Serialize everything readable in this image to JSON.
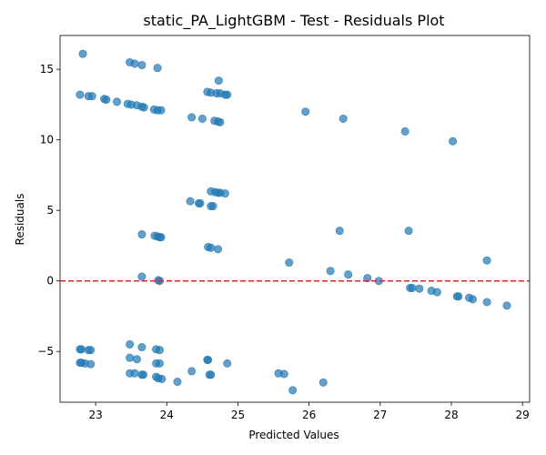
{
  "chart_data": {
    "type": "scatter",
    "title": "static_PA_LightGBM - Test - Residuals Plot",
    "xlabel": "Predicted Values",
    "ylabel": "Residuals",
    "xlim": [
      22.5,
      29.1
    ],
    "ylim": [
      -8.6,
      17.4
    ],
    "xticks": [
      23,
      24,
      25,
      26,
      27,
      28,
      29
    ],
    "yticks": [
      -5,
      0,
      5,
      10,
      15
    ],
    "grid": false,
    "legend": "none",
    "reference_line": {
      "y": 0,
      "style": "dashed",
      "color": "#d62728"
    },
    "point_color": "#1f77b4",
    "point_alpha": 0.7,
    "series": [
      {
        "points": [
          [
            22.82,
            16.1
          ],
          [
            23.48,
            15.5
          ],
          [
            23.55,
            15.4
          ],
          [
            23.65,
            15.3
          ],
          [
            23.87,
            15.1
          ],
          [
            24.73,
            14.2
          ],
          [
            22.78,
            13.2
          ],
          [
            22.9,
            13.1
          ],
          [
            22.95,
            13.1
          ],
          [
            23.12,
            12.9
          ],
          [
            23.15,
            12.85
          ],
          [
            23.3,
            12.7
          ],
          [
            23.45,
            12.55
          ],
          [
            23.5,
            12.5
          ],
          [
            23.58,
            12.45
          ],
          [
            23.65,
            12.35
          ],
          [
            23.68,
            12.3
          ],
          [
            23.82,
            12.15
          ],
          [
            23.87,
            12.1
          ],
          [
            23.92,
            12.1
          ],
          [
            24.57,
            13.4
          ],
          [
            24.62,
            13.35
          ],
          [
            24.7,
            13.3
          ],
          [
            24.75,
            13.3
          ],
          [
            24.82,
            13.2
          ],
          [
            24.85,
            13.2
          ],
          [
            24.35,
            11.6
          ],
          [
            24.5,
            11.5
          ],
          [
            24.67,
            11.35
          ],
          [
            24.72,
            11.3
          ],
          [
            24.75,
            11.25
          ],
          [
            25.95,
            12.0
          ],
          [
            26.48,
            11.5
          ],
          [
            27.35,
            10.6
          ],
          [
            28.02,
            9.9
          ],
          [
            24.62,
            6.35
          ],
          [
            24.68,
            6.3
          ],
          [
            24.72,
            6.25
          ],
          [
            24.75,
            6.25
          ],
          [
            24.82,
            6.2
          ],
          [
            24.33,
            5.65
          ],
          [
            24.45,
            5.5
          ],
          [
            24.47,
            5.5
          ],
          [
            24.62,
            5.3
          ],
          [
            24.65,
            5.3
          ],
          [
            23.65,
            3.3
          ],
          [
            23.83,
            3.2
          ],
          [
            23.87,
            3.15
          ],
          [
            23.9,
            3.1
          ],
          [
            23.92,
            3.1
          ],
          [
            24.58,
            2.4
          ],
          [
            24.62,
            2.35
          ],
          [
            24.72,
            2.25
          ],
          [
            26.43,
            3.55
          ],
          [
            27.4,
            3.55
          ],
          [
            25.72,
            1.3
          ],
          [
            28.5,
            1.45
          ],
          [
            23.65,
            0.3
          ],
          [
            23.88,
            0.05
          ],
          [
            23.9,
            0.0
          ],
          [
            26.3,
            0.7
          ],
          [
            26.55,
            0.45
          ],
          [
            26.82,
            0.2
          ],
          [
            26.98,
            0.0
          ],
          [
            27.42,
            -0.5
          ],
          [
            27.45,
            -0.5
          ],
          [
            27.55,
            -0.55
          ],
          [
            27.72,
            -0.7
          ],
          [
            27.8,
            -0.8
          ],
          [
            28.08,
            -1.1
          ],
          [
            28.1,
            -1.1
          ],
          [
            28.25,
            -1.2
          ],
          [
            28.3,
            -1.3
          ],
          [
            28.5,
            -1.5
          ],
          [
            28.78,
            -1.75
          ],
          [
            22.78,
            -4.85
          ],
          [
            22.8,
            -4.85
          ],
          [
            22.9,
            -4.9
          ],
          [
            22.93,
            -4.9
          ],
          [
            23.48,
            -4.5
          ],
          [
            23.65,
            -4.7
          ],
          [
            23.85,
            -4.85
          ],
          [
            23.9,
            -4.9
          ],
          [
            22.78,
            -5.8
          ],
          [
            22.8,
            -5.8
          ],
          [
            22.85,
            -5.85
          ],
          [
            22.93,
            -5.9
          ],
          [
            23.48,
            -5.45
          ],
          [
            23.58,
            -5.55
          ],
          [
            23.85,
            -5.85
          ],
          [
            23.9,
            -5.85
          ],
          [
            24.57,
            -5.6
          ],
          [
            24.58,
            -5.6
          ],
          [
            24.85,
            -5.85
          ],
          [
            23.48,
            -6.55
          ],
          [
            23.55,
            -6.55
          ],
          [
            23.65,
            -6.65
          ],
          [
            23.67,
            -6.65
          ],
          [
            23.85,
            -6.8
          ],
          [
            23.88,
            -6.9
          ],
          [
            23.93,
            -6.95
          ],
          [
            24.15,
            -7.15
          ],
          [
            24.35,
            -6.4
          ],
          [
            24.6,
            -6.65
          ],
          [
            24.62,
            -6.65
          ],
          [
            25.57,
            -6.55
          ],
          [
            25.65,
            -6.6
          ],
          [
            26.2,
            -7.2
          ],
          [
            25.77,
            -7.75
          ]
        ]
      }
    ]
  }
}
